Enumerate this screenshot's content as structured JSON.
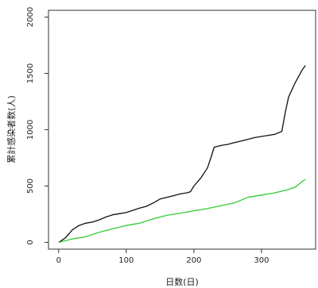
{
  "chart_data": {
    "type": "line",
    "title": "",
    "xlabel": "日数(日)",
    "ylabel": "累計感染者数(人)",
    "xlim": [
      -15,
      380
    ],
    "ylim": [
      -60,
      2060
    ],
    "xticks": [
      0,
      100,
      200,
      300
    ],
    "yticks": [
      0,
      500,
      1000,
      1500,
      2000
    ],
    "grid": false,
    "legend": "none",
    "series": [
      {
        "color": "#111111",
        "x": [
          0,
          10,
          20,
          30,
          40,
          50,
          60,
          70,
          80,
          90,
          100,
          110,
          120,
          130,
          140,
          150,
          160,
          170,
          180,
          190,
          195,
          200,
          210,
          220,
          225,
          230,
          240,
          250,
          260,
          270,
          280,
          290,
          300,
          310,
          320,
          330,
          335,
          340,
          350,
          360,
          365
        ],
        "y": [
          0,
          40,
          110,
          150,
          170,
          180,
          200,
          225,
          245,
          255,
          265,
          285,
          305,
          320,
          350,
          385,
          400,
          415,
          430,
          440,
          450,
          500,
          570,
          660,
          750,
          845,
          860,
          870,
          885,
          900,
          915,
          930,
          940,
          950,
          960,
          985,
          1150,
          1290,
          1420,
          1530,
          1570
        ]
      },
      {
        "color": "#33cc33",
        "x": [
          0,
          20,
          40,
          60,
          80,
          100,
          120,
          140,
          160,
          180,
          200,
          220,
          240,
          260,
          280,
          300,
          320,
          340,
          350,
          360,
          365
        ],
        "y": [
          0,
          30,
          50,
          90,
          120,
          150,
          170,
          210,
          240,
          260,
          280,
          300,
          325,
          350,
          400,
          420,
          440,
          470,
          490,
          540,
          560
        ]
      }
    ]
  }
}
